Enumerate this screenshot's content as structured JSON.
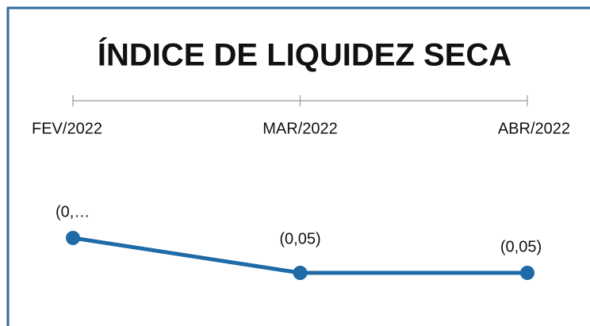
{
  "chart_data": {
    "type": "line",
    "title": "ÍNDICE DE LIQUIDEZ SECA",
    "categories": [
      "FEV/2022",
      "MAR/2022",
      "ABR/2022"
    ],
    "series": [
      {
        "name": "Índice de liquidez seca",
        "color": "#1f6ba8",
        "values": [
          -0.03,
          -0.05,
          -0.05
        ],
        "value_labels": [
          "(0,…",
          "(0,05)",
          "(0,05)"
        ]
      }
    ]
  }
}
